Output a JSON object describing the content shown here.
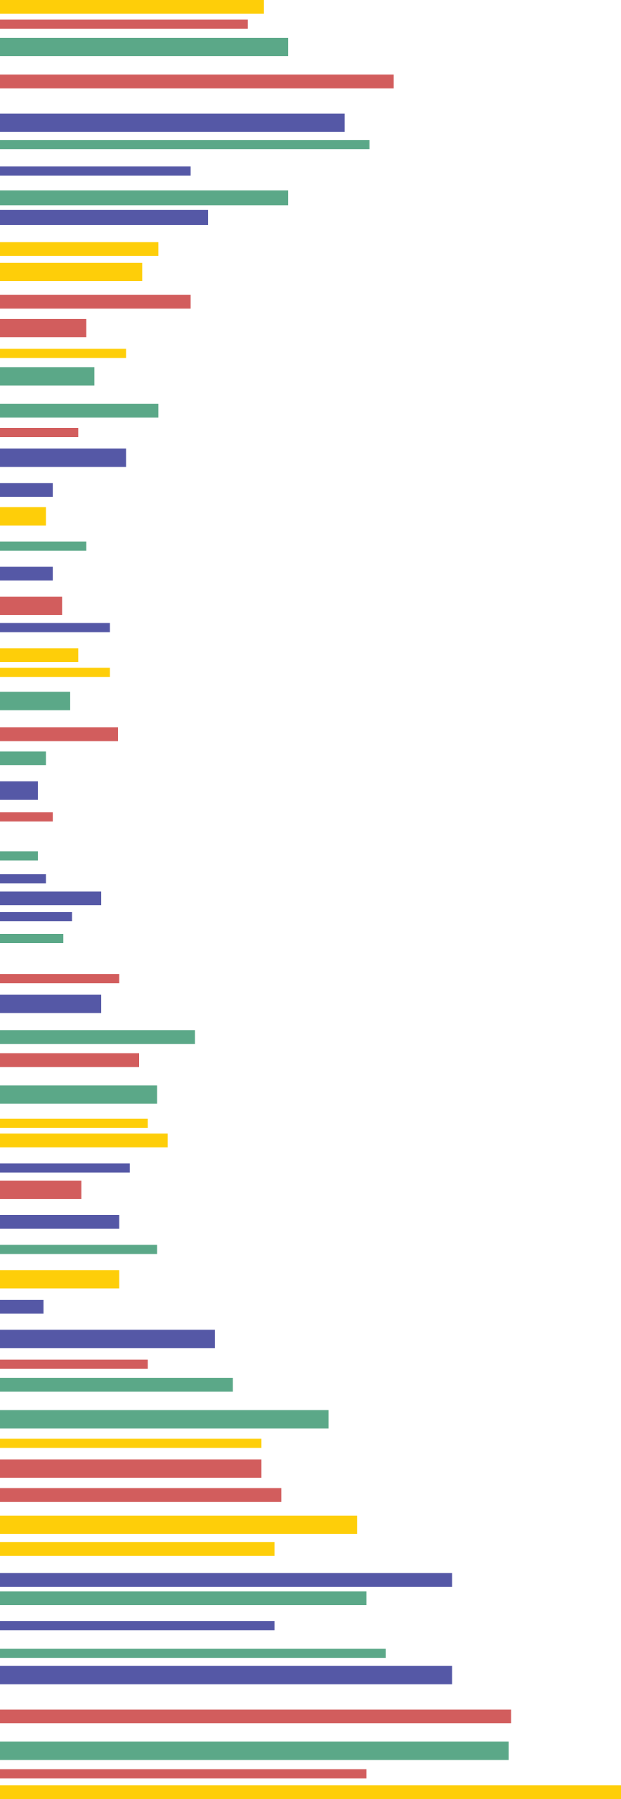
{
  "chart_data": {
    "type": "bar",
    "orientation": "horizontal",
    "xlim": [
      0,
      100
    ],
    "values": [
      42.5,
      39.9,
      46.4,
      63.4,
      55.5,
      59.5,
      30.7,
      46.4,
      33.5,
      25.5,
      22.9,
      30.7,
      13.9,
      20.3,
      15.2,
      25.5,
      12.6,
      20.3,
      8.5,
      7.4,
      13.9,
      8.5,
      10,
      17.7,
      12.6,
      17.7,
      11.3,
      19,
      7.4,
      6.1,
      8.5,
      6.1,
      7.4,
      16.3,
      11.6,
      10.2,
      19.2,
      16.3,
      31.4,
      22.4,
      25.3,
      23.8,
      27,
      20.9,
      13.1,
      19.2,
      25.3,
      19.2,
      7,
      34.6,
      23.8,
      37.5,
      52.9,
      42.1,
      42.1,
      45.3,
      57.5,
      44.2,
      72.8,
      59,
      44.2,
      62.1,
      72.8,
      82.3,
      81.9,
      59,
      100
    ],
    "colors": [
      "#fece09",
      "#d25d5d",
      "#5ba888",
      "#d25d5d",
      "#5558a6",
      "#5ba888",
      "#5558a6",
      "#5ba888",
      "#5558a6",
      "#fece09",
      "#fece09",
      "#d25d5d",
      "#d25d5d",
      "#fece09",
      "#5ba888",
      "#5ba888",
      "#d25d5d",
      "#5558a6",
      "#5558a6",
      "#fece09",
      "#5ba888",
      "#5558a6",
      "#d25d5d",
      "#5558a6",
      "#fece09",
      "#fece09",
      "#5ba888",
      "#d25d5d",
      "#5ba888",
      "#5558a6",
      "#d25d5d",
      "#5ba888",
      "#5558a6",
      "#5558a6",
      "#5558a6",
      "#5ba888",
      "#d25d5d",
      "#5558a6",
      "#5ba888",
      "#d25d5d",
      "#5ba888",
      "#fece09",
      "#fece09",
      "#5558a6",
      "#d25d5d",
      "#5558a6",
      "#5ba888",
      "#fece09",
      "#5558a6",
      "#5558a6",
      "#d25d5d",
      "#5ba888",
      "#5ba888",
      "#fece09",
      "#d25d5d",
      "#d25d5d",
      "#fece09",
      "#fece09",
      "#5558a6",
      "#5ba888",
      "#5558a6",
      "#5ba888",
      "#5558a6",
      "#d25d5d",
      "#5ba888",
      "#d25d5d",
      "#fece09"
    ]
  }
}
